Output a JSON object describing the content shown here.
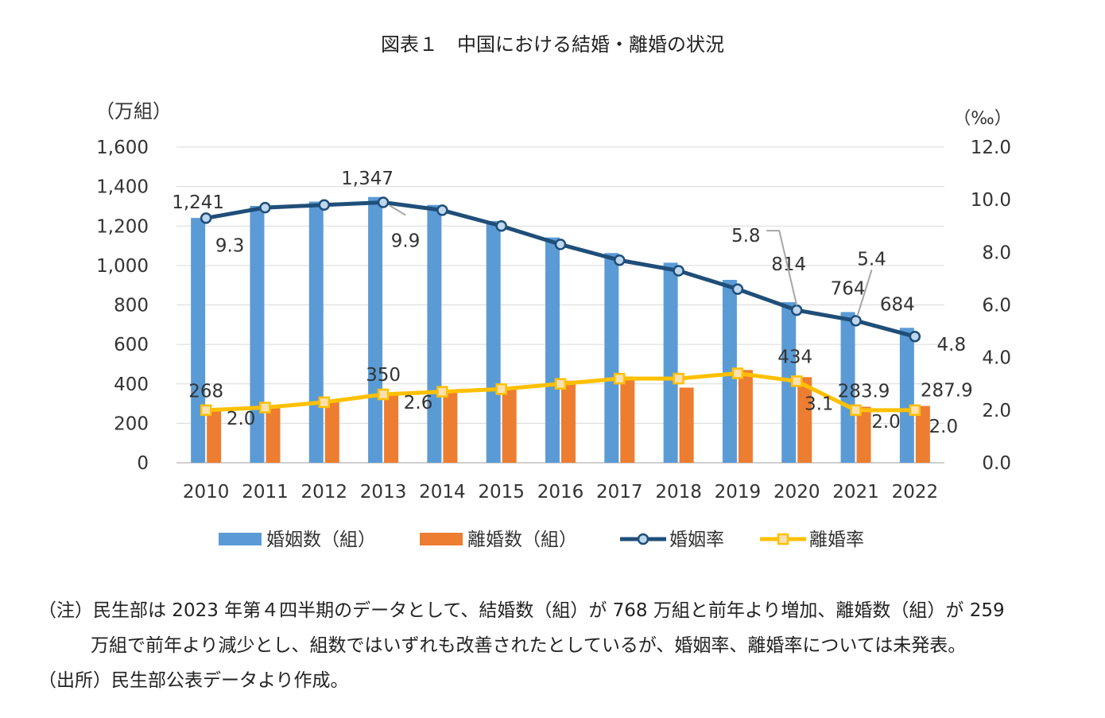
{
  "chart_data": {
    "type": "bar+line",
    "title": "図表１　中国における結婚・離婚の状況",
    "categories": [
      "2010",
      "2011",
      "2012",
      "2013",
      "2014",
      "2015",
      "2016",
      "2017",
      "2018",
      "2019",
      "2020",
      "2021",
      "2022"
    ],
    "ylabel_left": "（万組）",
    "ylabel_right": "（‰）",
    "ylim_left": [
      0,
      1600
    ],
    "ylim_right": [
      0,
      12
    ],
    "yticks_left": [
      "0",
      "200",
      "400",
      "600",
      "800",
      "1,000",
      "1,200",
      "1,400",
      "1,600"
    ],
    "yticks_right": [
      "0.0",
      "2.0",
      "4.0",
      "6.0",
      "8.0",
      "10.0",
      "12.0"
    ],
    "series": [
      {
        "name": "婚姻数（組）",
        "kind": "bar",
        "axis": "left",
        "color": "#5b9bd5",
        "values": [
          1241,
          1302,
          1324,
          1347,
          1307,
          1225,
          1142,
          1063,
          1014,
          927,
          814,
          764,
          684
        ]
      },
      {
        "name": "離婚数（組）",
        "kind": "bar",
        "axis": "left",
        "color": "#ed7d31",
        "values": [
          268,
          287,
          310,
          350,
          364,
          384,
          416,
          437,
          381,
          470,
          434,
          283.9,
          287.9
        ]
      },
      {
        "name": "婚姻率",
        "kind": "line",
        "axis": "right",
        "color": "#1f4e79",
        "values": [
          9.3,
          9.7,
          9.8,
          9.9,
          9.6,
          9.0,
          8.3,
          7.7,
          7.3,
          6.6,
          5.8,
          5.4,
          4.8
        ]
      },
      {
        "name": "離婚率",
        "kind": "line",
        "axis": "right",
        "color": "#ffc000",
        "values": [
          2.0,
          2.1,
          2.3,
          2.6,
          2.7,
          2.8,
          3.0,
          3.2,
          3.2,
          3.4,
          3.1,
          2.0,
          2.0
        ]
      }
    ],
    "data_labels": [
      {
        "series": 0,
        "index": 0,
        "text": "1,241"
      },
      {
        "series": 0,
        "index": 3,
        "text": "1,347"
      },
      {
        "series": 0,
        "index": 10,
        "text": "814"
      },
      {
        "series": 0,
        "index": 11,
        "text": "764"
      },
      {
        "series": 0,
        "index": 12,
        "text": "684"
      },
      {
        "series": 1,
        "index": 0,
        "text": "268"
      },
      {
        "series": 1,
        "index": 3,
        "text": "350"
      },
      {
        "series": 1,
        "index": 10,
        "text": "434"
      },
      {
        "series": 1,
        "index": 11,
        "text": "283.9"
      },
      {
        "series": 1,
        "index": 12,
        "text": "287.9"
      },
      {
        "series": 2,
        "index": 0,
        "text": "9.3"
      },
      {
        "series": 2,
        "index": 3,
        "text": "9.9"
      },
      {
        "series": 2,
        "index": 10,
        "text": "5.8"
      },
      {
        "series": 2,
        "index": 11,
        "text": "5.4"
      },
      {
        "series": 2,
        "index": 12,
        "text": "4.8"
      },
      {
        "series": 3,
        "index": 0,
        "text": "2.0"
      },
      {
        "series": 3,
        "index": 3,
        "text": "2.6"
      },
      {
        "series": 3,
        "index": 10,
        "text": "3.1"
      },
      {
        "series": 3,
        "index": 11,
        "text": "2.0"
      },
      {
        "series": 3,
        "index": 12,
        "text": "2.0"
      }
    ],
    "legend_position": "bottom"
  },
  "notes": {
    "note_line1": "（注）民生部は 2023 年第４四半期のデータとして、結婚数（組）が 768 万組と前年より増加、離婚数（組）が 259",
    "note_line2": "万組で前年より減少とし、組数ではいずれも改善されたとしているが、婚姻率、離婚率については未発表。",
    "source_line": "（出所）民生部公表データより作成。"
  }
}
